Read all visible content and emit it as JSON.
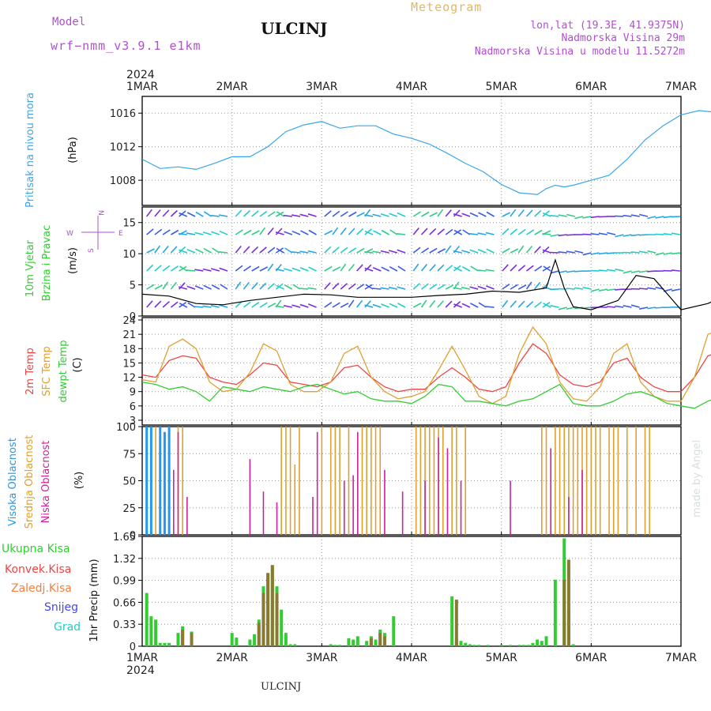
{
  "header": {
    "model_label": "Model",
    "model_name": "wrf−nmm_v3.9.1  e1km",
    "station": "ULCINJ",
    "meteogram": "Meteogram",
    "coords": "lon,lat (19.3E, 41.9375N)",
    "alt1": "Nadmorska Visina 29m",
    "alt2": "Nadmorska Visina u modelu 11.5272m"
  },
  "footer_station": "ULCINJ",
  "watermark": "made by Angel",
  "time_axis": {
    "year": "2024",
    "ticks": [
      "1MAR",
      "2MAR",
      "3MAR",
      "4MAR",
      "5MAR",
      "6MAR",
      "7MAR"
    ]
  },
  "colors": {
    "pressure": "#3aa6e8",
    "temp2m": "#ee4444",
    "sfc": "#e0a030",
    "dewpt": "#33cc33",
    "high_cloud": "#2299ee",
    "mid_cloud": "#e0a030",
    "low_cloud": "#cc2299",
    "wind_speed": "#000000",
    "precip_total": "#33cc33",
    "precip_conv": "#ee4444"
  },
  "panels": {
    "pressure": {
      "label": "Pritisak na nivou mora",
      "unit": "(hPa)",
      "ticks": [
        "1008",
        "1012",
        "1016"
      ]
    },
    "wind": {
      "label1": "10m Vjetar",
      "label2": "Brzina i Pravac",
      "unit": "(m/s)",
      "ticks": [
        "0",
        "5",
        "10",
        "15"
      ],
      "compass_n": "N",
      "compass_s": "S",
      "compass_e": "E",
      "compass_w": "W"
    },
    "temp": {
      "label1": "2m Temp",
      "label2": "SFC Temp",
      "label3": "dewpt Temp",
      "unit": "(C)",
      "ticks": [
        "3",
        "6",
        "9",
        "12",
        "15",
        "18",
        "21",
        "24"
      ]
    },
    "cloud": {
      "label1": "Visoka Oblacnost",
      "label2": "Srednja Oblacnost",
      "label3": "Niska Oblacnost",
      "unit": "(%)",
      "ticks": [
        "0",
        "25",
        "50",
        "75",
        "100"
      ]
    },
    "precip": {
      "labels": [
        "Ukupna Kisa",
        "Konvek.Kisa",
        "Zaledj.Kisa",
        "Snijeg",
        "Grad"
      ],
      "unit": "1hr Precip (mm)",
      "ticks": [
        "0",
        "0.33",
        "0.66",
        "0.99",
        "1.32",
        "1.65"
      ]
    }
  },
  "chart_data": [
    {
      "type": "line",
      "title": "Pritisak na nivou mora",
      "ylabel": "(hPa)",
      "ylim": [
        1005,
        1018
      ],
      "x_unit": "days since 1MAR",
      "series": [
        {
          "name": "Pritisak na nivou mora",
          "x": [
            0,
            0.2,
            0.4,
            0.6,
            0.8,
            1.0,
            1.2,
            1.4,
            1.6,
            1.8,
            2.0,
            2.2,
            2.4,
            2.6,
            2.8,
            3.0,
            3.2,
            3.4,
            3.6,
            3.8,
            4.0,
            4.2,
            4.4,
            4.5,
            4.6,
            4.7,
            4.8,
            5.0,
            5.2,
            5.4,
            5.6,
            5.8,
            6.0,
            6.2,
            6.4,
            6.6,
            6.8,
            7.0
          ],
          "y": [
            1010.5,
            1009.4,
            1009.6,
            1009.3,
            1010.0,
            1010.8,
            1010.8,
            1012.0,
            1013.8,
            1014.6,
            1015.0,
            1014.2,
            1014.5,
            1014.5,
            1013.5,
            1013.0,
            1012.3,
            1011.2,
            1010.0,
            1009.0,
            1007.5,
            1006.5,
            1006.3,
            1007.0,
            1007.4,
            1007.2,
            1007.4,
            1008.0,
            1008.6,
            1010.5,
            1012.8,
            1014.5,
            1015.8,
            1016.3,
            1016.1,
            1016.6,
            1017.6,
            1018.5
          ]
        }
      ],
      "grid": true
    },
    {
      "type": "line",
      "title": "10m Vjetar Brzina i Pravac",
      "ylabel": "(m/s)",
      "ylim": [
        0,
        17.5
      ],
      "x_unit": "days since 1MAR",
      "series": [
        {
          "name": "Brzina",
          "x": [
            0,
            0.3,
            0.6,
            0.9,
            1.2,
            1.5,
            1.8,
            2.1,
            2.4,
            2.7,
            3.0,
            3.3,
            3.6,
            3.9,
            4.2,
            4.5,
            4.6,
            4.7,
            4.8,
            5.0,
            5.3,
            5.5,
            5.7,
            6.0,
            6.3,
            6.6,
            6.8,
            7.0
          ],
          "y": [
            3.5,
            3.2,
            2.0,
            1.8,
            2.5,
            3.0,
            3.5,
            3.4,
            3.0,
            3.0,
            3.0,
            3.3,
            3.5,
            4.0,
            3.8,
            4.5,
            9.0,
            4.5,
            1.5,
            1.0,
            2.5,
            6.5,
            6.0,
            1.0,
            2.0,
            4.0,
            3.0,
            2.0
          ]
        }
      ],
      "grid": true
    },
    {
      "type": "line",
      "title": "Temperature",
      "ylabel": "(C)",
      "ylim": [
        2,
        24.5
      ],
      "x_unit": "days since 1MAR",
      "x": [
        0,
        0.15,
        0.3,
        0.45,
        0.6,
        0.75,
        0.9,
        1.05,
        1.2,
        1.35,
        1.5,
        1.65,
        1.8,
        1.95,
        2.1,
        2.25,
        2.4,
        2.55,
        2.7,
        2.85,
        3.0,
        3.15,
        3.3,
        3.45,
        3.6,
        3.75,
        3.9,
        4.05,
        4.2,
        4.35,
        4.5,
        4.65,
        4.8,
        4.95,
        5.1,
        5.25,
        5.4,
        5.55,
        5.7,
        5.85,
        6.0,
        6.15,
        6.3,
        6.45,
        6.6,
        6.75,
        6.9,
        7.0
      ],
      "series": [
        {
          "name": "2m Temp",
          "y": [
            12.5,
            12.0,
            15.5,
            16.5,
            16.0,
            12.0,
            11.0,
            10.5,
            12.5,
            15.0,
            14.5,
            11.0,
            10.5,
            10.0,
            11.0,
            14.0,
            14.5,
            12.0,
            10.0,
            9.0,
            9.5,
            9.5,
            12.0,
            14.0,
            12.0,
            9.5,
            9.0,
            10.0,
            15.0,
            19.0,
            17.0,
            12.5,
            10.5,
            10.0,
            11.0,
            15.0,
            16.0,
            12.0,
            10.0,
            9.0,
            9.0,
            12.0,
            16.5,
            17.5,
            14.0,
            11.5,
            10.5,
            11.0
          ]
        },
        {
          "name": "SFC Temp",
          "y": [
            11.5,
            11.0,
            18.5,
            20.0,
            18.0,
            11.0,
            9.0,
            9.5,
            13.0,
            19.0,
            17.5,
            10.5,
            9.0,
            9.0,
            11.0,
            17.0,
            18.5,
            12.0,
            9.0,
            7.5,
            8.0,
            9.0,
            13.5,
            18.5,
            13.5,
            8.0,
            6.5,
            8.0,
            17.0,
            22.5,
            19.0,
            11.0,
            7.5,
            7.0,
            10.0,
            17.0,
            19.0,
            11.0,
            8.0,
            7.0,
            7.0,
            12.0,
            21.0,
            22.0,
            15.0,
            10.0,
            8.0,
            7.5
          ]
        },
        {
          "name": "dewpt Temp",
          "y": [
            11.0,
            10.5,
            9.5,
            10.0,
            9.0,
            7.0,
            10.0,
            9.5,
            9.0,
            10.0,
            9.5,
            9.0,
            10.0,
            10.5,
            9.5,
            8.5,
            9.0,
            7.5,
            7.0,
            7.0,
            6.5,
            8.0,
            10.5,
            10.0,
            7.0,
            7.0,
            6.5,
            6.0,
            7.0,
            7.5,
            9.0,
            10.5,
            6.5,
            6.0,
            6.0,
            7.0,
            8.5,
            9.0,
            8.0,
            6.5,
            6.0,
            5.5,
            7.0,
            8.0,
            6.5,
            5.0,
            5.5,
            6.0
          ]
        }
      ],
      "grid": true
    },
    {
      "type": "bar",
      "title": "Oblacnost",
      "ylabel": "(%)",
      "ylim": [
        0,
        100
      ],
      "x_unit": "days since 1MAR",
      "series": [
        {
          "name": "Visoka Oblacnost",
          "x": [
            0.05,
            0.1,
            0.2,
            0.25,
            0.3,
            6.5,
            6.55,
            6.6,
            6.65,
            6.7,
            6.8,
            6.85,
            6.9,
            6.95,
            7.0
          ],
          "y": [
            100,
            100,
            100,
            95,
            100,
            100,
            100,
            95,
            100,
            100,
            100,
            90,
            100,
            100,
            100
          ]
        },
        {
          "name": "Srednja Oblacnost",
          "x": [
            0.15,
            0.35,
            0.4,
            0.45,
            1.55,
            1.6,
            1.65,
            1.7,
            1.75,
            2.0,
            2.1,
            2.15,
            2.2,
            2.3,
            2.45,
            2.5,
            2.55,
            2.6,
            2.65,
            3.05,
            3.1,
            3.15,
            3.2,
            3.25,
            3.3,
            3.35,
            3.45,
            3.5,
            3.6,
            4.45,
            4.5,
            4.6,
            4.65,
            4.7,
            4.75,
            4.8,
            4.85,
            4.9,
            4.95,
            5.0,
            5.05,
            5.1,
            5.2,
            5.25,
            5.3,
            5.4,
            5.5,
            5.6,
            5.65
          ],
          "y": [
            100,
            10,
            100,
            100,
            100,
            100,
            100,
            65,
            100,
            100,
            100,
            100,
            100,
            100,
            100,
            100,
            100,
            100,
            100,
            100,
            100,
            100,
            100,
            100,
            100,
            100,
            100,
            100,
            100,
            100,
            100,
            100,
            100,
            100,
            100,
            100,
            100,
            100,
            100,
            100,
            100,
            100,
            100,
            100,
            100,
            100,
            100,
            100,
            100
          ]
        },
        {
          "name": "Niska Oblacnost",
          "x": [
            0.35,
            0.4,
            0.5,
            1.2,
            1.35,
            1.5,
            1.9,
            1.95,
            2.25,
            2.35,
            2.4,
            2.7,
            2.9,
            3.15,
            3.3,
            3.4,
            3.55,
            4.1,
            4.55,
            4.75,
            4.9
          ],
          "y": [
            60,
            95,
            35,
            70,
            40,
            30,
            35,
            95,
            50,
            55,
            95,
            60,
            40,
            50,
            90,
            80,
            50,
            50,
            80,
            35,
            60
          ]
        }
      ],
      "grid": true
    },
    {
      "type": "bar",
      "title": "1hr Precip",
      "ylabel": "1hr Precip (mm)",
      "ylim": [
        0,
        1.65
      ],
      "x_unit": "days since 1MAR",
      "series": [
        {
          "name": "Ukupna Kisa",
          "x": [
            0.05,
            0.1,
            0.15,
            0.2,
            0.25,
            0.3,
            0.4,
            0.45,
            0.55,
            1.0,
            1.05,
            1.2,
            1.25,
            1.3,
            1.35,
            1.4,
            1.45,
            1.5,
            1.55,
            1.6,
            1.65,
            1.7,
            2.1,
            2.15,
            2.2,
            2.3,
            2.35,
            2.4,
            2.5,
            2.55,
            2.6,
            2.65,
            2.7,
            2.8,
            3.45,
            3.5,
            3.55,
            3.6,
            3.65,
            3.7,
            3.75,
            3.85,
            4.0,
            4.1,
            4.2,
            4.25,
            4.3,
            4.35,
            4.4,
            4.45,
            4.5,
            4.6,
            4.7,
            4.75,
            4.8
          ],
          "y": [
            0.8,
            0.45,
            0.4,
            0.05,
            0.05,
            0.05,
            0.2,
            0.3,
            0.22,
            0.2,
            0.13,
            0.1,
            0.18,
            0.4,
            0.9,
            1.1,
            1.2,
            0.9,
            0.55,
            0.2,
            0.03,
            0.03,
            0.03,
            0.02,
            0.02,
            0.12,
            0.1,
            0.15,
            0.08,
            0.15,
            0.1,
            0.25,
            0.2,
            0.45,
            0.75,
            0.1,
            0.08,
            0.05,
            0.03,
            0.02,
            0.02,
            0.02,
            0.02,
            0.02,
            0.02,
            0.02,
            0.02,
            0.05,
            0.1,
            0.08,
            0.15,
            1.0,
            1.62,
            0.55,
            0.03
          ]
        },
        {
          "name": "Konvek.Kisa",
          "x": [
            0.45,
            0.55,
            1.3,
            1.35,
            1.4,
            1.45,
            1.5,
            2.55,
            2.65,
            2.7,
            3.5,
            4.7,
            4.75
          ],
          "y": [
            0.25,
            0.2,
            0.35,
            0.8,
            1.1,
            1.22,
            0.8,
            0.12,
            0.2,
            0.15,
            0.7,
            1.0,
            1.3
          ]
        }
      ],
      "grid": true
    }
  ]
}
